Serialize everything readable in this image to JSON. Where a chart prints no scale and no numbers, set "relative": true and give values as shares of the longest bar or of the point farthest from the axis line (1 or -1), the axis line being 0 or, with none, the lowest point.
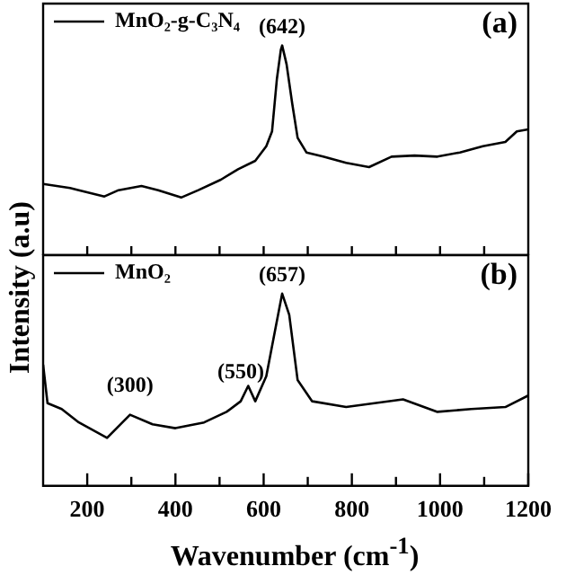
{
  "chart_data": [
    {
      "type": "line",
      "relative": true,
      "ylabel": "Intensity (a.u)",
      "xlim": [
        100,
        1200
      ],
      "xticks": [
        {
          "value": 200,
          "label": null
        },
        {
          "value": 300,
          "label": null
        },
        {
          "value": 400,
          "label": null
        },
        {
          "value": 500,
          "label": null
        },
        {
          "value": 600,
          "label": null
        },
        {
          "value": 700,
          "label": null
        },
        {
          "value": 800,
          "label": null
        },
        {
          "value": 900,
          "label": null
        },
        {
          "value": 1000,
          "label": null
        },
        {
          "value": 1100,
          "label": null
        }
      ],
      "tick_labels": false,
      "legend": "top left",
      "series": [
        {
          "name": "MnO₂-g-C₃N₄",
          "color": "#000000",
          "x": [
            100,
            161,
            181,
            239,
            271,
            323,
            361,
            413,
            452,
            503,
            542,
            581,
            606,
            619,
            630,
            639,
            642,
            652,
            665,
            677,
            697,
            735,
            787,
            839,
            890,
            942,
            994,
            1045,
            1097,
            1148,
            1174,
            1200
          ],
          "values": [
            0.34,
            0.32,
            0.31,
            0.28,
            0.31,
            0.33,
            0.31,
            0.275,
            0.31,
            0.36,
            0.41,
            0.45,
            0.52,
            0.59,
            0.84,
            0.98,
            1,
            0.91,
            0.72,
            0.56,
            0.49,
            0.47,
            0.44,
            0.42,
            0.47,
            0.475,
            0.47,
            0.49,
            0.52,
            0.54,
            0.59,
            0.6
          ]
        }
      ],
      "annotations": [
        {
          "text": "(642)",
          "x": 642,
          "y": 1
        },
        "(a)"
      ]
    },
    {
      "type": "line",
      "relative": true,
      "xlabel": "Wavenumber (cm$^{-1}$)",
      "xlim": [
        100,
        1200
      ],
      "xticks": [
        200,
        {
          "value": 300,
          "label": null
        },
        400,
        {
          "value": 500,
          "label": null
        },
        600,
        {
          "value": 700,
          "label": null
        },
        800,
        {
          "value": 900,
          "label": null
        },
        1000,
        {
          "value": 1100,
          "label": null
        },
        1200
      ],
      "tick_labels": "x",
      "legend": "top left",
      "series": [
        {
          "name": "MnO₂",
          "color": "#000000",
          "x": [
            100,
            110,
            142,
            181,
            245,
            297,
            348,
            400,
            465,
            516,
            548,
            565,
            581,
            606,
            626,
            642,
            658,
            677,
            710,
            787,
            916,
            994,
            1071,
            1148,
            1200
          ],
          "values": [
            0.63,
            0.43,
            0.4,
            0.33,
            0.25,
            0.37,
            0.32,
            0.3,
            0.33,
            0.385,
            0.44,
            0.52,
            0.44,
            0.57,
            0.81,
            1,
            0.89,
            0.55,
            0.44,
            0.41,
            0.45,
            0.385,
            0.4,
            0.41,
            0.47
          ]
        }
      ],
      "annotations": [
        {
          "text": "(300)",
          "x": 297,
          "y": 0.37
        },
        {
          "text": "(550)",
          "x": 548,
          "y": 0.44
        },
        {
          "text": "(657)",
          "x": 642,
          "y": 1
        },
        "(b)"
      ]
    }
  ]
}
